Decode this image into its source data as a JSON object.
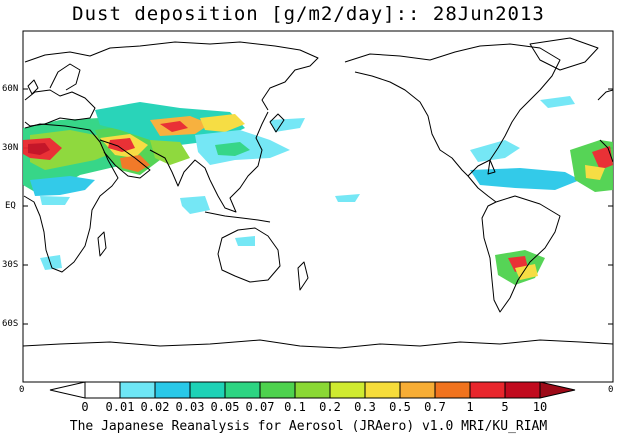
{
  "title": "Dust deposition [g/m2/day]:: 28Jun2013",
  "footer": "The Japanese Reanalysis for Aerosol (JRAero) v1.0 MRI/KU_RIAM",
  "map": {
    "lat_labels": [
      "60N",
      "30N",
      "EQ",
      "30S",
      "60S"
    ],
    "lon_edge_labels": {
      "left": "0",
      "right": "0"
    }
  },
  "colorbar": {
    "ticks": [
      "0",
      "0.01",
      "0.02",
      "0.03",
      "0.05",
      "0.07",
      "0.1",
      "0.2",
      "0.3",
      "0.5",
      "0.7",
      "1",
      "5",
      "10"
    ],
    "colors": [
      "#ffffff",
      "#6ee6f5",
      "#29c8e8",
      "#1ed2b6",
      "#2dd482",
      "#4ed24e",
      "#8ad834",
      "#cfea30",
      "#f6dc3a",
      "#f7ad35",
      "#f1731e",
      "#e8262c",
      "#c10a1e",
      "#9d0a18",
      "#7a0c0c"
    ],
    "edge_labels": {
      "left": "0",
      "right": "0"
    }
  }
}
